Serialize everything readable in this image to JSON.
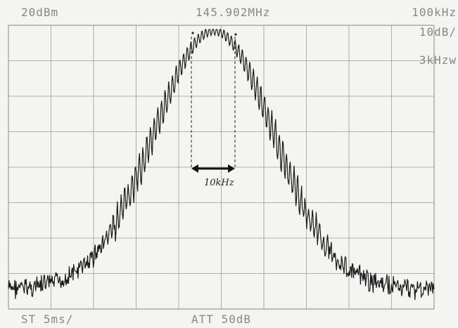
{
  "readouts": {
    "ref_level": "20dBm",
    "center_freq": "145.902MHz",
    "span": "100kHz",
    "scale": "10dB/",
    "rbw": "3kHzw",
    "sweep": "ST 5ms/",
    "atten": "ATT 50dB"
  },
  "annotation": {
    "bandwidth_label": "10kHz"
  },
  "colors": {
    "trace": "#1a1a1a",
    "grid": "#9a9a9a",
    "text": "#888888",
    "background": "#f4f4f1"
  },
  "trace": {
    "noise_floor_label": "",
    "peak_label": ""
  }
}
